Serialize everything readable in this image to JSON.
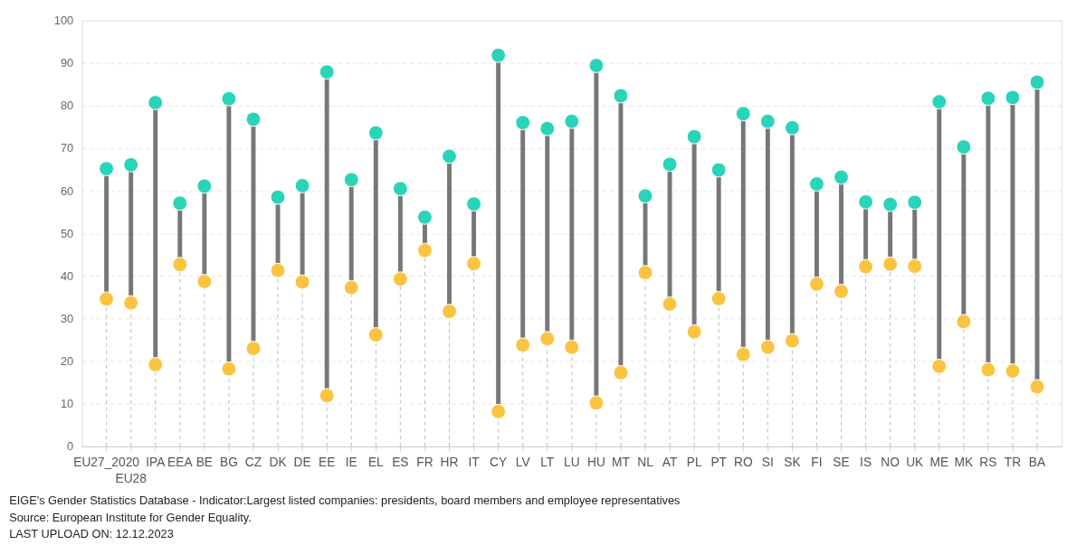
{
  "chart_data": {
    "type": "scatter",
    "categories": [
      "EU27_2020",
      "EU28",
      "IPA",
      "EEA",
      "BE",
      "BG",
      "CZ",
      "DK",
      "DE",
      "EE",
      "IE",
      "EL",
      "ES",
      "FR",
      "HR",
      "IT",
      "CY",
      "LV",
      "LT",
      "LU",
      "HU",
      "MT",
      "NL",
      "AT",
      "PL",
      "PT",
      "RO",
      "SI",
      "SK",
      "FI",
      "SE",
      "IS",
      "NO",
      "UK",
      "ME",
      "MK",
      "RS",
      "TR",
      "BA"
    ],
    "series": [
      {
        "color": "#2ad4b8",
        "values": [
          65.2,
          66.1,
          80.7,
          57.1,
          61.1,
          81.6,
          76.8,
          58.5,
          61.2,
          87.9,
          62.6,
          73.6,
          60.5,
          53.8,
          68.1,
          56.9,
          91.8,
          76.0,
          74.6,
          76.3,
          89.4,
          82.3,
          58.8,
          66.2,
          72.7,
          64.9,
          78.1,
          76.3,
          74.8,
          61.6,
          63.2,
          57.4,
          56.8,
          57.3,
          80.9,
          70.3,
          81.7,
          81.9,
          85.5
        ]
      },
      {
        "color": "#fbc440",
        "values": [
          34.6,
          33.7,
          19.2,
          42.7,
          38.7,
          18.2,
          23.0,
          41.3,
          38.6,
          11.9,
          37.3,
          26.2,
          39.3,
          46.0,
          31.7,
          42.9,
          8.2,
          23.8,
          25.3,
          23.3,
          10.2,
          17.3,
          40.8,
          33.4,
          26.9,
          34.7,
          21.6,
          23.3,
          24.8,
          38.1,
          36.4,
          42.2,
          42.8,
          42.3,
          18.8,
          29.3,
          18.0,
          17.7,
          14.0
        ]
      }
    ],
    "ylim": [
      0,
      100
    ],
    "yticks": [
      0,
      10,
      20,
      30,
      40,
      50,
      60,
      70,
      80,
      90,
      100
    ],
    "grid": true,
    "marker": "circle",
    "annotations": [
      "EIGE's Gender Statistics Database - Indicator:Largest listed companies: presidents, board members and employee representatives",
      "Source: European Institute for Gender Equality.",
      "LAST UPLOAD ON: 12.12.2023"
    ]
  }
}
